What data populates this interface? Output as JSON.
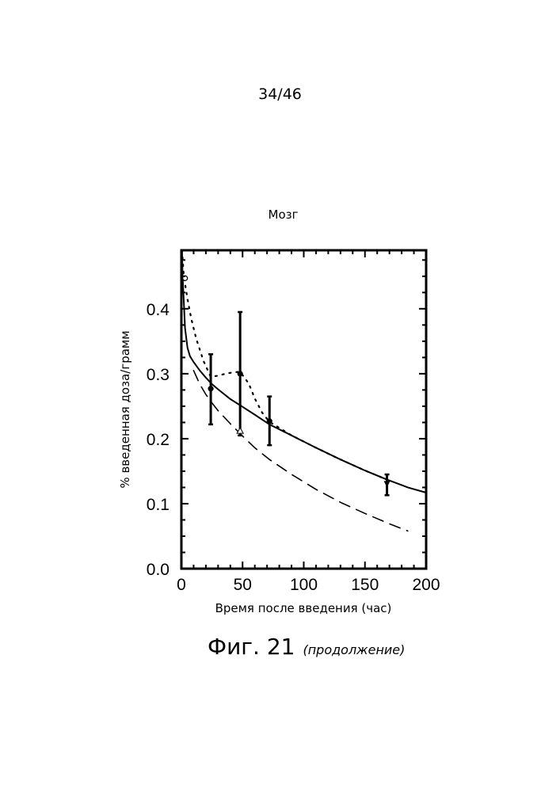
{
  "page_number": "34/46",
  "figure": {
    "label": "Фиг. 21",
    "note": "(продолжение)"
  },
  "chart_data": {
    "type": "line",
    "title": "Мозг",
    "xlabel": "Время после введения (час)",
    "ylabel": "% введенная доза/грамм",
    "xlim": [
      0,
      200
    ],
    "ylim": [
      0,
      0.49
    ],
    "xticks": [
      0,
      50,
      100,
      150,
      200
    ],
    "xtick_labels": [
      "0",
      "50",
      "100",
      "150",
      "200"
    ],
    "yticks": [
      0,
      0.1,
      0.2,
      0.3,
      0.4
    ],
    "ytick_labels": [
      "0.0",
      "0.1",
      "0.2",
      "0.3",
      "0.4"
    ],
    "series": [
      {
        "style": "solid",
        "x": [
          0.5,
          1,
          2,
          3,
          5,
          7,
          10,
          15,
          20,
          25,
          30,
          40,
          50,
          60,
          72,
          90,
          110,
          130,
          150,
          168,
          185,
          200
        ],
        "y": [
          0.49,
          0.45,
          0.41,
          0.37,
          0.34,
          0.327,
          0.318,
          0.305,
          0.294,
          0.284,
          0.276,
          0.261,
          0.249,
          0.237,
          0.222,
          0.205,
          0.186,
          0.168,
          0.151,
          0.137,
          0.125,
          0.117
        ]
      },
      {
        "style": "dotted",
        "x": [
          0.5,
          2,
          5,
          8,
          12,
          18,
          24,
          30,
          36,
          42,
          48,
          55,
          60,
          66,
          72,
          90,
          110,
          130,
          150,
          168
        ],
        "y": [
          0.49,
          0.45,
          0.415,
          0.385,
          0.355,
          0.32,
          0.295,
          0.297,
          0.3,
          0.302,
          0.303,
          0.285,
          0.262,
          0.24,
          0.226,
          0.205,
          0.186,
          0.168,
          0.151,
          0.137
        ]
      },
      {
        "style": "dashed",
        "x": [
          10,
          15,
          20,
          25,
          30,
          40,
          50,
          60,
          72,
          90,
          110,
          130,
          150,
          170,
          185
        ],
        "y": [
          0.305,
          0.284,
          0.268,
          0.255,
          0.243,
          0.223,
          0.204,
          0.186,
          0.168,
          0.145,
          0.122,
          0.102,
          0.085,
          0.069,
          0.058
        ]
      }
    ],
    "points": [
      {
        "marker": "circle",
        "x": 24,
        "y": 0.277,
        "err_low": 0.222,
        "err_high": 0.33
      },
      {
        "marker": "circle",
        "x": 48,
        "y": 0.3,
        "err_low": 0.205,
        "err_high": 0.395
      },
      {
        "marker": "circle",
        "x": 72,
        "y": 0.227,
        "err_low": 0.19,
        "err_high": 0.265
      },
      {
        "marker": "triangle-down",
        "x": 168,
        "y": 0.13,
        "err_low": 0.113,
        "err_high": 0.145
      },
      {
        "marker": "open-circle",
        "x": 3,
        "y": 0.447
      },
      {
        "marker": "open-triangle",
        "x": 48,
        "y": 0.212
      }
    ],
    "grid": false,
    "frame": "box with inward ticks"
  }
}
